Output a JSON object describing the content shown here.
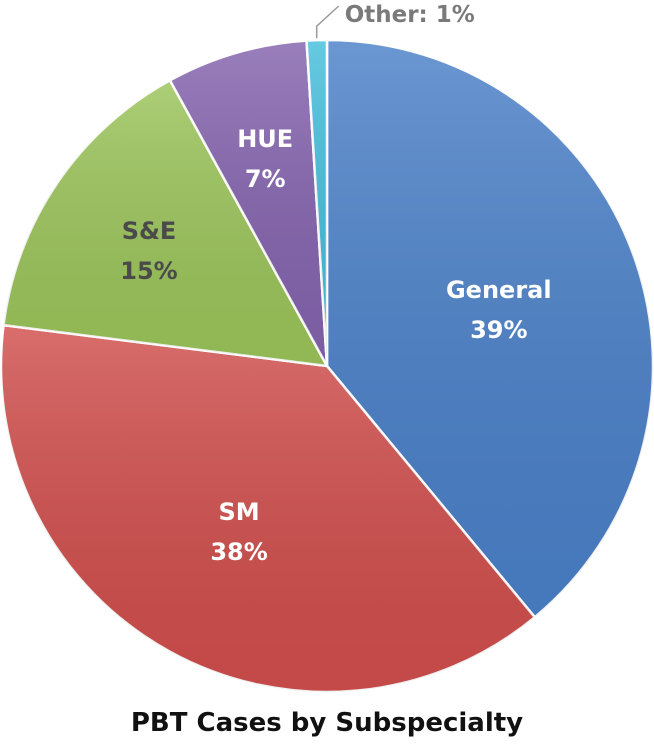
{
  "chart_data": {
    "type": "pie",
    "title": "PBT Cases by Subspecialty",
    "slices": [
      {
        "label": "General",
        "value": 39,
        "display": "39%",
        "color": "#4A80C8",
        "label_color": "#ffffff"
      },
      {
        "label": "SM",
        "value": 38,
        "display": "38%",
        "color": "#D04E4C",
        "label_color": "#ffffff"
      },
      {
        "label": "S&E",
        "value": 15,
        "display": "15%",
        "color": "#9BC45A",
        "label_color": "#4a4a4a"
      },
      {
        "label": "HUE",
        "value": 7,
        "display": "7%",
        "color": "#8463AE",
        "label_color": "#ffffff"
      },
      {
        "label": "Other",
        "value": 1,
        "display": "1%",
        "color": "#46BEDD",
        "label_color": "#7a7a7a",
        "external_text": "Other: 1%"
      }
    ],
    "start": "top, clockwise",
    "legend": "none"
  }
}
